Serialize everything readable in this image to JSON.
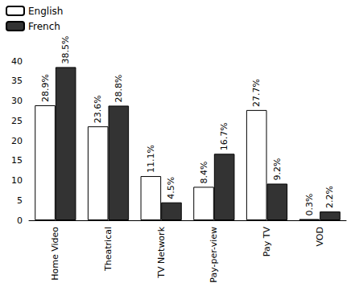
{
  "chart_data": {
    "type": "bar",
    "categories": [
      "Home Video",
      "Theatrical",
      "TV Network",
      "Pay-per-view",
      "Pay TV",
      "VOD"
    ],
    "series": [
      {
        "name": "English",
        "color": "#ffffff",
        "values": [
          28.9,
          23.6,
          11.1,
          8.4,
          27.7,
          0.3
        ],
        "value_labels": [
          "28.9%",
          "23.6%",
          "11.1%",
          "8.4%",
          "27.7%",
          "0.3%"
        ]
      },
      {
        "name": "French",
        "color": "#333333",
        "values": [
          38.5,
          28.8,
          4.5,
          16.7,
          9.2,
          2.2
        ],
        "value_labels": [
          "38.5%",
          "28.8%",
          "4.5%",
          "16.7%",
          "9.2%",
          "2.2%"
        ]
      }
    ],
    "ylim": [
      0,
      40
    ],
    "yticks": [
      0,
      5,
      10,
      15,
      20,
      25,
      30,
      35,
      40
    ],
    "grid": false,
    "legend": "top-left",
    "data_labels": true
  }
}
